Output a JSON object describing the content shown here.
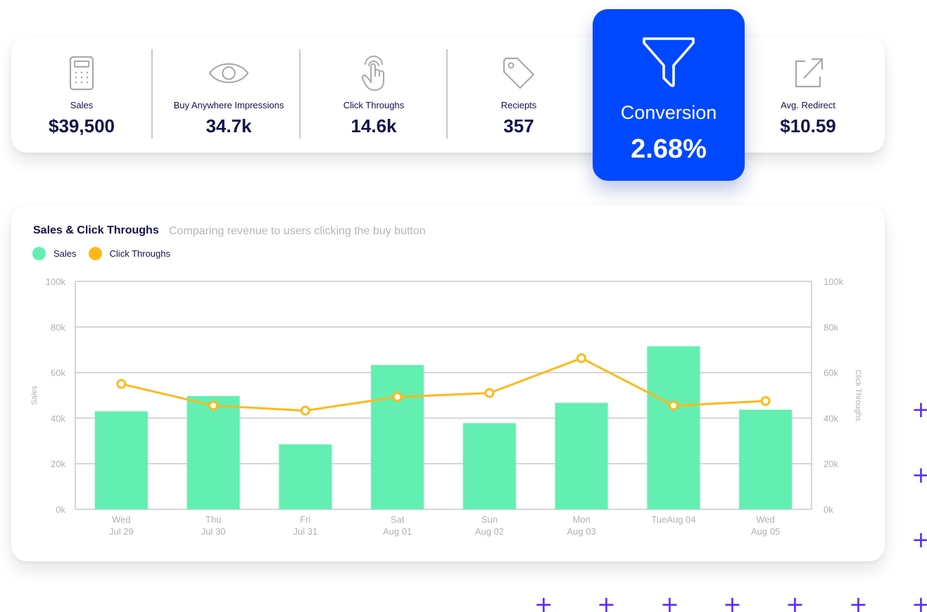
{
  "kpis": [
    {
      "label": "Sales",
      "value": "$39,500",
      "icon": "calculator-icon"
    },
    {
      "label": "Buy Anywhere Impressions",
      "value": "34.7k",
      "icon": "eye-icon"
    },
    {
      "label": "Click Throughs",
      "value": "14.6k",
      "icon": "pointer-hand-icon"
    },
    {
      "label": "Reciepts",
      "value": "357",
      "icon": "tag-icon"
    },
    {
      "label": "Avg. Redirect",
      "value": "$10.59",
      "icon": "external-link-icon"
    }
  ],
  "conversion": {
    "label": "Conversion",
    "value": "2.68%",
    "icon": "funnel-icon"
  },
  "colors": {
    "accent": "#0048ff",
    "sales": "#63efb2",
    "clicks": "#ffb81c",
    "navy": "#12124a",
    "plus": "#5a2cff"
  },
  "chart": {
    "title": "Sales & Click Throughs",
    "subtitle": "Comparing revenue to users clicking the buy button",
    "legend": [
      "Sales",
      "Click Throughs"
    ]
  },
  "chart_data": {
    "type": "bar",
    "categories": [
      [
        "Wed",
        "Jul 29"
      ],
      [
        "Thu",
        "Jul 30"
      ],
      [
        "Fri",
        "Jul 31"
      ],
      [
        "Sat",
        "Aug 01"
      ],
      [
        "Sun",
        "Aug 02"
      ],
      [
        "Mon",
        "Aug 03"
      ],
      [
        "TueAug 04",
        ""
      ],
      [
        "Wed",
        "Aug 05"
      ]
    ],
    "series": [
      {
        "name": "Sales",
        "type": "bar",
        "axis": "left",
        "values": [
          43000,
          49700,
          28500,
          63300,
          37800,
          46700,
          71500,
          43700
        ]
      },
      {
        "name": "Click Throughs",
        "type": "line",
        "axis": "right",
        "values": [
          55000,
          45500,
          43300,
          49300,
          51000,
          66300,
          45500,
          47500
        ]
      }
    ],
    "ylabel": "Sales",
    "y2label": "Click Throughs",
    "ylim": [
      0,
      100000
    ],
    "yticks": [
      "0k",
      "20k",
      "40k",
      "60k",
      "80k",
      "100k"
    ],
    "y2ticks": [
      "0k",
      "20k",
      "40k",
      "60k",
      "80k",
      "100k"
    ],
    "grid": true,
    "legend_position": "top-left"
  }
}
